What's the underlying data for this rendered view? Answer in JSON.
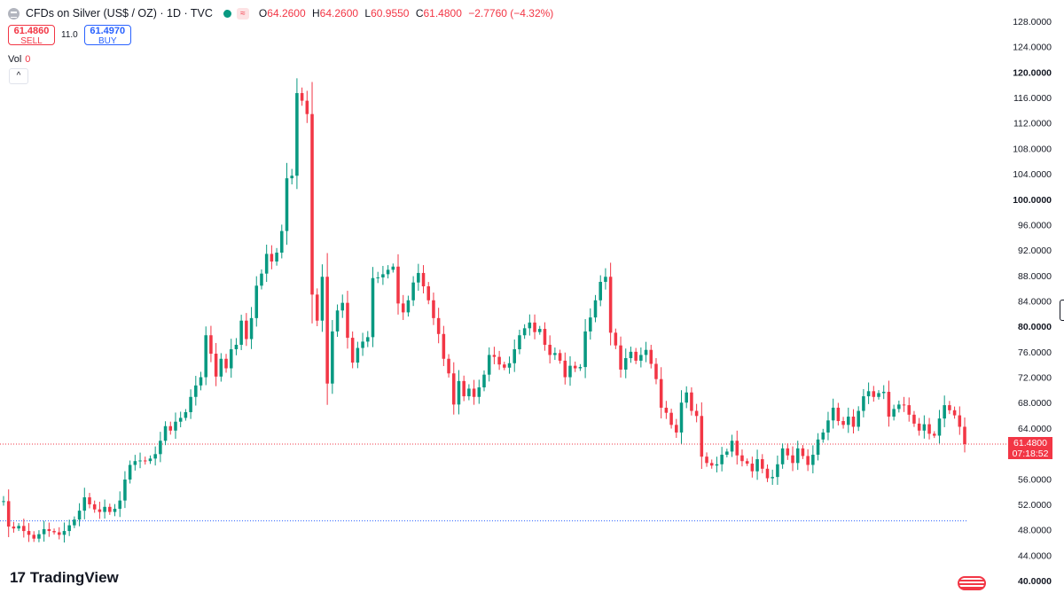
{
  "header": {
    "symbol_title": "CFDs on Silver (US$ / OZ) · 1D · TVC",
    "ohlc": {
      "o_label": "O",
      "o_value": "64.2600",
      "h_label": "H",
      "h_value": "64.2600",
      "l_label": "L",
      "l_value": "60.9550",
      "c_label": "C",
      "c_value": "61.4800",
      "change": "−2.7760 (−4.32%)"
    }
  },
  "trade": {
    "sell_price": "61.4860",
    "sell_label": "SELL",
    "spread": "11.0",
    "buy_price": "61.4970",
    "buy_label": "BUY"
  },
  "volume": {
    "label": "Vol",
    "value": "0"
  },
  "collapse_glyph": "^",
  "brand": {
    "mark": "17",
    "name": "TradingView"
  },
  "last_price": {
    "value": "61.4800",
    "countdown": "07:18:52"
  },
  "colors": {
    "up": "#089981",
    "down": "#f23645",
    "last_line": "#f23645",
    "ref_line": "#2962ff"
  },
  "icons": [
    "silver-symbol-icon",
    "market-status-dot-icon",
    "wave-icon",
    "chevron-up-icon",
    "tradingview-logo-icon",
    "us-flag-icon"
  ],
  "chart_data": {
    "type": "candlestick",
    "y_axis": {
      "min": 40,
      "max": 128,
      "tick_labels": [
        "128.0000",
        "124.0000",
        "120.0000",
        "116.0000",
        "112.0000",
        "108.0000",
        "104.0000",
        "100.0000",
        "96.0000",
        "92.0000",
        "88.0000",
        "84.0000",
        "80.0000",
        "76.0000",
        "72.0000",
        "68.0000",
        "64.0000",
        "60.0000",
        "56.0000",
        "52.0000",
        "48.0000",
        "44.0000",
        "40.0000"
      ],
      "bold_labels": [
        "120.0000",
        "100.0000",
        "80.0000",
        "40.0000"
      ]
    },
    "last_price": 61.48,
    "reference_level": 49.4,
    "close_series": [
      52.5,
      48.5,
      48.2,
      48.6,
      47.8,
      47.2,
      46.6,
      47.3,
      48.1,
      47.8,
      47.6,
      47.2,
      47.8,
      48.7,
      49.6,
      51.0,
      53.1,
      52.0,
      51.2,
      50.8,
      51.6,
      50.8,
      51.3,
      52.6,
      55.9,
      58.2,
      58.8,
      58.9,
      58.8,
      59.2,
      59.9,
      62.0,
      64.3,
      63.6,
      65.0,
      65.6,
      66.5,
      68.9,
      70.7,
      72.0,
      78.6,
      75.7,
      72.1,
      74.9,
      73.4,
      76.4,
      77.1,
      80.9,
      78.0,
      81.3,
      86.4,
      88.3,
      91.4,
      90.2,
      91.6,
      95.0,
      103.3,
      103.7,
      116.7,
      115.5,
      113.4,
      85.0,
      80.9,
      87.8,
      71.0,
      79.2,
      82.5,
      83.7,
      78.2,
      74.3,
      76.6,
      77.6,
      78.3,
      87.6,
      87.7,
      88.2,
      88.9,
      89.4,
      83.6,
      82.2,
      84.1,
      86.9,
      88.4,
      86.3,
      84.1,
      81.3,
      78.8,
      74.9,
      72.6,
      67.7,
      71.4,
      69.0,
      70.2,
      68.9,
      70.4,
      72.4,
      75.5,
      75.2,
      74.0,
      73.5,
      74.2,
      76.4,
      78.6,
      79.7,
      80.6,
      79.1,
      79.6,
      77.1,
      75.5,
      75.8,
      74.6,
      72.0,
      73.8,
      73.4,
      73.6,
      79.2,
      81.4,
      84.1,
      87.0,
      87.8,
      79.0,
      77.0,
      73.2,
      75.0,
      76.0,
      74.6,
      75.5,
      76.3,
      74.1,
      71.7,
      67.2,
      66.4,
      64.5,
      63.3,
      68.0,
      69.6,
      66.7,
      65.9,
      59.5,
      58.5,
      58.1,
      58.3,
      59.8,
      60.3,
      62.0,
      59.7,
      58.8,
      58.4,
      57.2,
      59.1,
      57.6,
      56.1,
      56.3,
      58.3,
      60.8,
      59.7,
      58.5,
      60.8,
      59.6,
      58.2,
      59.8,
      62.2,
      63.3,
      65.2,
      67.2,
      65.1,
      64.5,
      65.8,
      64.2,
      66.7,
      69.0,
      69.8,
      68.9,
      69.5,
      69.7,
      65.8,
      67.0,
      67.7,
      67.6,
      66.1,
      64.7,
      63.6,
      64.6,
      63.1,
      62.8,
      65.5,
      67.6,
      66.8,
      66.0,
      64.2,
      61.48
    ]
  }
}
